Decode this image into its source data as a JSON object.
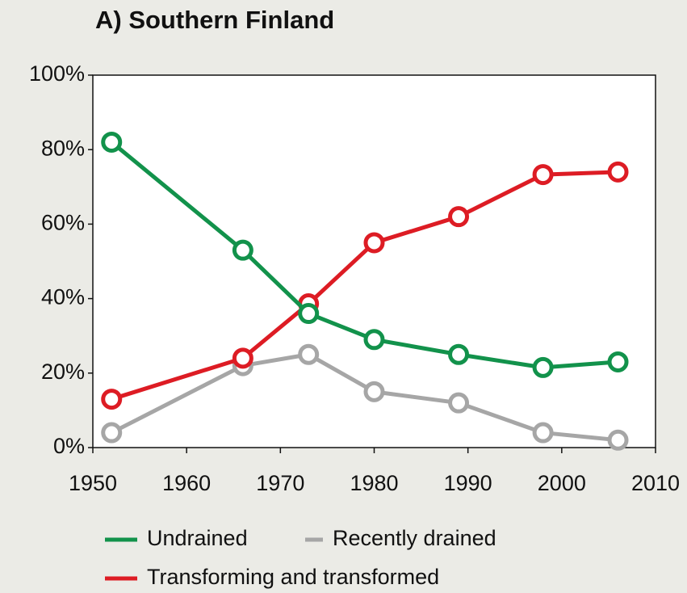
{
  "chart_data": {
    "type": "line",
    "title": "A) Southern Finland",
    "x": [
      1952,
      1966,
      1973,
      1980,
      1989,
      1998,
      2006
    ],
    "series": [
      {
        "name": "Recently drained",
        "color": "#a6a6a6",
        "values": [
          4,
          22,
          25,
          15,
          12,
          4,
          2
        ]
      },
      {
        "name": "Transforming and transformed",
        "color": "#dd1c24",
        "values": [
          13,
          24,
          38.6,
          55,
          62,
          73.3,
          74
        ]
      },
      {
        "name": "Undrained",
        "color": "#12924b",
        "values": [
          82,
          53,
          36,
          29,
          25,
          21.5,
          23
        ]
      }
    ],
    "xlim": [
      1950,
      2010
    ],
    "xticks": [
      1950,
      1960,
      1970,
      1980,
      1990,
      2000,
      2010
    ],
    "ylim": [
      0,
      100
    ],
    "yticks": [
      {
        "value": 0,
        "label": "0%"
      },
      {
        "value": 20,
        "label": "20%"
      },
      {
        "value": 40,
        "label": "40%"
      },
      {
        "value": 60,
        "label": "60%"
      },
      {
        "value": 80,
        "label": "80%"
      },
      {
        "value": 100,
        "label": "100%"
      }
    ],
    "legend": "bottom"
  }
}
